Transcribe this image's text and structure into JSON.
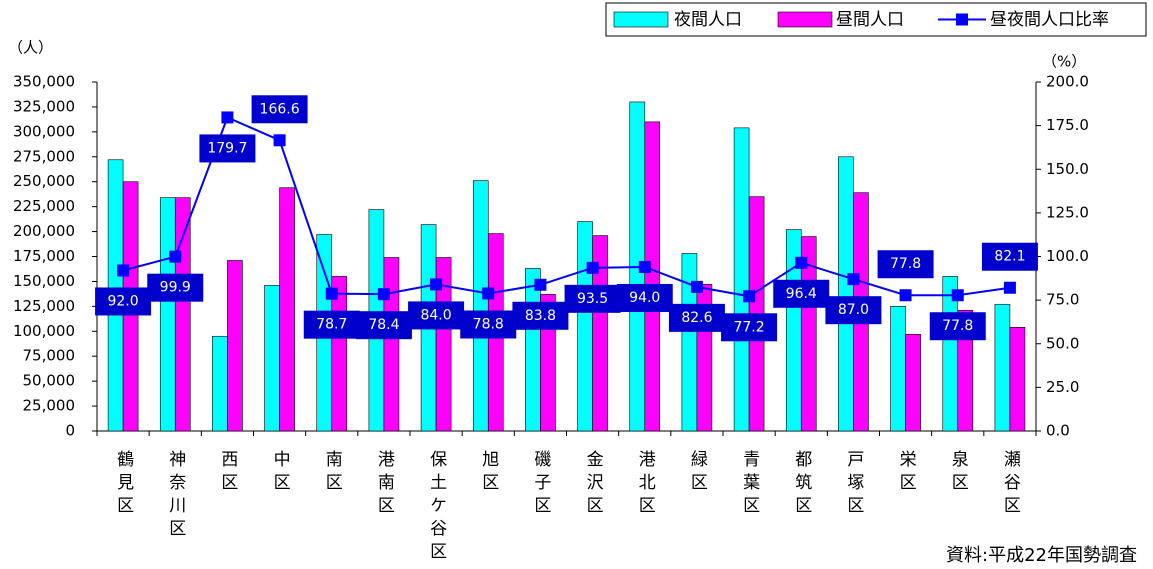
{
  "chart_data": {
    "type": "bar-line",
    "y_label": "（人）",
    "y2_label": "（%）",
    "source": "資料:平成22年国勢調査",
    "categories": [
      "鶴見区",
      "神奈川区",
      "西区",
      "中区",
      "南区",
      "港南区",
      "保土ケ谷区",
      "旭区",
      "磯子区",
      "金沢区",
      "港北区",
      "緑区",
      "青葉区",
      "都筑区",
      "戸塚区",
      "栄区",
      "泉区",
      "瀬谷区"
    ],
    "series": [
      {
        "name": "夜間人口",
        "type": "bar",
        "color": "#00ffff",
        "values": [
          272000,
          234000,
          95000,
          146000,
          197000,
          222000,
          207000,
          251000,
          163000,
          210000,
          330000,
          178000,
          304000,
          202000,
          275000,
          125000,
          155000,
          127000
        ]
      },
      {
        "name": "昼間人口",
        "type": "bar",
        "color": "#ff00ff",
        "values": [
          250000,
          234000,
          171000,
          244000,
          155000,
          174000,
          174000,
          198000,
          137000,
          196000,
          310000,
          147000,
          235000,
          195000,
          239000,
          97000,
          121000,
          104000
        ]
      },
      {
        "name": "昼夜間人口比率",
        "type": "line",
        "axis": "y2",
        "color": "#0000ff",
        "values": [
          92,
          99.9,
          179.7,
          166.6,
          78.7,
          78.4,
          84,
          78.8,
          83.8,
          93.5,
          94,
          82.6,
          77.2,
          96.4,
          87,
          77.8,
          77.8,
          82.1
        ],
        "value_labels": [
          "92.0",
          "99.9",
          "179.7",
          "166.6",
          "78.7",
          "78.4",
          "84.0",
          "78.8",
          "83.8",
          "93.5",
          "94.0",
          "82.6",
          "77.2",
          "96.4",
          "87.0",
          "77.8",
          "77.8",
          "82.1"
        ]
      }
    ],
    "ylim": [
      0,
      350000
    ],
    "yticks": [
      0,
      {
        "value": 25000,
        "label": "25,000"
      },
      {
        "value": 50000,
        "label": "50,000"
      },
      {
        "value": 75000,
        "label": "75,000"
      },
      {
        "value": 100000,
        "label": "100,000"
      },
      {
        "value": 125000,
        "label": "125,000"
      },
      {
        "value": 150000,
        "label": "150,000"
      },
      {
        "value": 175000,
        "label": "175,000"
      },
      {
        "value": 200000,
        "label": "200,000"
      },
      {
        "value": 225000,
        "label": "225,000"
      },
      {
        "value": 250000,
        "label": "250,000"
      },
      {
        "value": 275000,
        "label": "275,000"
      },
      {
        "value": 300000,
        "label": "300,000"
      },
      {
        "value": 325000,
        "label": "325,000"
      },
      {
        "value": 350000,
        "label": "350,000"
      }
    ],
    "y2lim": [
      0,
      200
    ],
    "y2ticks": [
      {
        "value": 0,
        "label": "0.0"
      },
      {
        "value": 25,
        "label": "25.0"
      },
      {
        "value": 50,
        "label": "50.0"
      },
      {
        "value": 75,
        "label": "75.0"
      },
      {
        "value": 100,
        "label": "100.0"
      },
      {
        "value": 125,
        "label": "125.0"
      },
      {
        "value": 150,
        "label": "150.0"
      },
      {
        "value": 175,
        "label": "175.0"
      },
      {
        "value": 200,
        "label": "200.0"
      }
    ],
    "legend": "top-right",
    "grid": false
  }
}
